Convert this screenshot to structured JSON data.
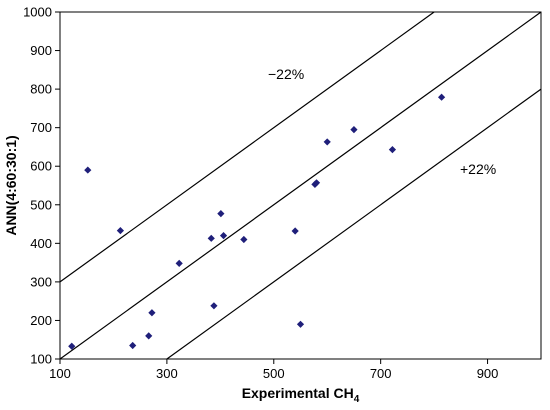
{
  "chart_data": {
    "type": "scatter",
    "title": "",
    "xlabel": "Experimental CH",
    "xlabel_subscript": "4",
    "ylabel": "ANN(4:60:30:1)",
    "xlim": [
      100,
      1000
    ],
    "ylim": [
      100,
      1000
    ],
    "xticks": [
      "100",
      "300",
      "500",
      "700",
      "900"
    ],
    "xtick_values": [
      100,
      300,
      500,
      700,
      900
    ],
    "yticks": [
      "100",
      "200",
      "300",
      "400",
      "500",
      "600",
      "700",
      "800",
      "900",
      "1000"
    ],
    "ytick_values": [
      100,
      200,
      300,
      400,
      500,
      600,
      700,
      800,
      900,
      1000
    ],
    "grid": false,
    "marker_color": "#1f1f7a",
    "points": [
      {
        "x": 122,
        "y": 133
      },
      {
        "x": 152,
        "y": 590
      },
      {
        "x": 213,
        "y": 433
      },
      {
        "x": 236,
        "y": 135
      },
      {
        "x": 266,
        "y": 160
      },
      {
        "x": 272,
        "y": 220
      },
      {
        "x": 323,
        "y": 348
      },
      {
        "x": 383,
        "y": 413
      },
      {
        "x": 388,
        "y": 238
      },
      {
        "x": 401,
        "y": 477
      },
      {
        "x": 406,
        "y": 420
      },
      {
        "x": 444,
        "y": 410
      },
      {
        "x": 540,
        "y": 432
      },
      {
        "x": 550,
        "y": 190
      },
      {
        "x": 577,
        "y": 553
      },
      {
        "x": 580,
        "y": 557
      },
      {
        "x": 600,
        "y": 663
      },
      {
        "x": 650,
        "y": 695
      },
      {
        "x": 722,
        "y": 643
      },
      {
        "x": 814,
        "y": 779
      }
    ],
    "reference_lines": [
      {
        "name": "center",
        "slope": 1.0,
        "intercept": 0,
        "label": ""
      },
      {
        "name": "upper",
        "slope": 1.0,
        "intercept": 200,
        "label": "−22%"
      },
      {
        "name": "lower",
        "slope": 1.0,
        "intercept": -200,
        "label": "+22%"
      }
    ]
  }
}
